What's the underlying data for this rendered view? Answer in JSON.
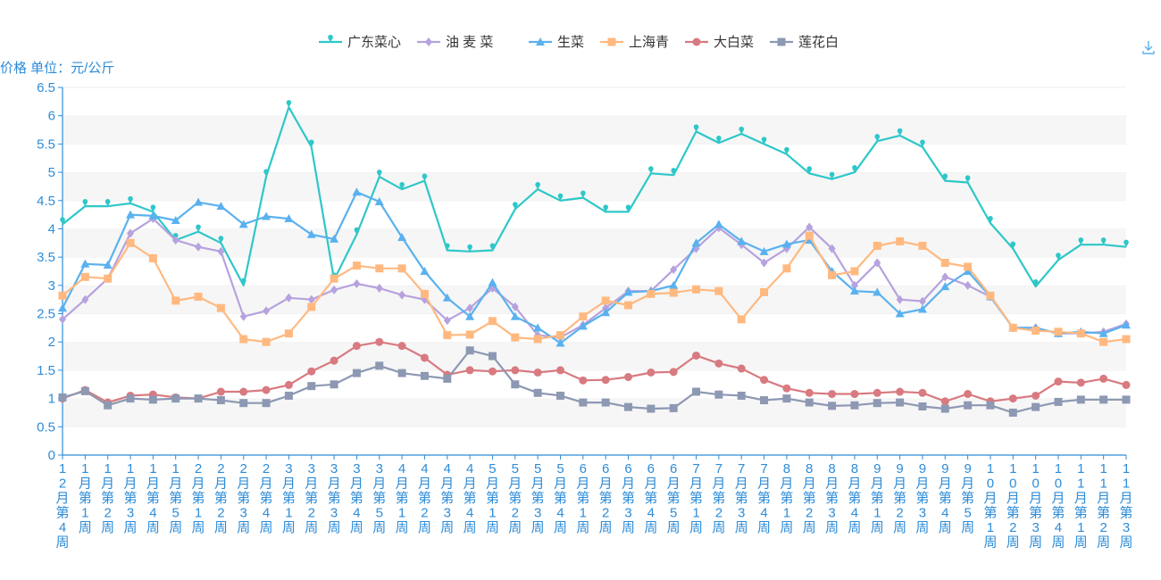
{
  "chart_data": {
    "type": "line",
    "ylabel": "价格 单位：元/公斤",
    "ylim": [
      0,
      6.5
    ],
    "ystep": 0.5,
    "y_ticks": [
      "0",
      "0.5",
      "1",
      "1.5",
      "2",
      "2.5",
      "3",
      "3.5",
      "4",
      "4.5",
      "5",
      "5.5",
      "6",
      "6.5"
    ],
    "grid": "horizontal bands",
    "legend_position": "top-center",
    "categories": [
      "12月第4周",
      "1月第1周",
      "1月第2周",
      "1月第3周",
      "1月第4周",
      "1月第5周",
      "2月第1周",
      "2月第2周",
      "2月第3周",
      "2月第4周",
      "3月第1周",
      "3月第2周",
      "3月第3周",
      "3月第4周",
      "3月第5周",
      "4月第1周",
      "4月第2周",
      "4月第3周",
      "4月第4周",
      "5月第1周",
      "5月第2周",
      "5月第3周",
      "5月第4周",
      "6月第1周",
      "6月第2周",
      "6月第3周",
      "6月第4周",
      "6月第5周",
      "7月第1周",
      "7月第2周",
      "7月第3周",
      "7月第4周",
      "8月第1周",
      "8月第2周",
      "8月第3周",
      "8月第4周",
      "9月第1周",
      "9月第2周",
      "9月第3周",
      "9月第4周",
      "9月第5周",
      "10月第1周",
      "10月第2周",
      "10月第3周",
      "10月第4周",
      "11月第1周",
      "11月第2周",
      "11月第3周"
    ],
    "series": [
      {
        "name": "广东菜心",
        "color": "#2ec7c9",
        "marker": "pin",
        "values": [
          4.08,
          4.4,
          4.4,
          4.45,
          4.3,
          3.8,
          3.95,
          3.75,
          3.0,
          4.93,
          6.15,
          5.45,
          3.1,
          3.9,
          4.92,
          4.7,
          4.85,
          3.62,
          3.6,
          3.62,
          4.35,
          4.7,
          4.5,
          4.55,
          4.3,
          4.3,
          4.98,
          4.95,
          5.72,
          5.52,
          5.68,
          5.5,
          5.32,
          4.98,
          4.88,
          5.0,
          5.55,
          5.65,
          5.45,
          4.85,
          4.82,
          4.1,
          3.65,
          2.98,
          3.45,
          3.72,
          3.72,
          3.68
        ]
      },
      {
        "name": "油 麦 菜",
        "color": "#b6a2de",
        "marker": "diamond",
        "values": [
          2.4,
          2.75,
          3.12,
          3.92,
          4.18,
          3.8,
          3.68,
          3.6,
          2.45,
          2.55,
          2.78,
          2.75,
          2.92,
          3.03,
          2.95,
          2.83,
          2.75,
          2.38,
          2.6,
          2.95,
          2.62,
          2.12,
          2.08,
          2.3,
          2.6,
          2.9,
          2.9,
          3.28,
          3.65,
          4.02,
          3.72,
          3.4,
          3.65,
          4.03,
          3.65,
          3.0,
          3.4,
          2.75,
          2.72,
          3.15,
          3.0,
          2.8,
          2.25,
          2.25,
          2.15,
          2.15,
          2.18,
          2.32
        ]
      },
      {
        "name": "生菜",
        "color": "#5ab1ef",
        "marker": "triangle",
        "values": [
          2.6,
          3.38,
          3.36,
          4.25,
          4.23,
          4.15,
          4.47,
          4.4,
          4.08,
          4.22,
          4.18,
          3.9,
          3.82,
          4.65,
          4.48,
          3.85,
          3.25,
          2.78,
          2.45,
          3.05,
          2.45,
          2.25,
          1.98,
          2.28,
          2.52,
          2.88,
          2.9,
          3.0,
          3.75,
          4.08,
          3.78,
          3.6,
          3.73,
          3.8,
          3.25,
          2.9,
          2.88,
          2.5,
          2.58,
          2.98,
          3.25,
          2.8,
          2.25,
          2.25,
          2.15,
          2.18,
          2.15,
          2.3
        ]
      },
      {
        "name": "上海青",
        "color": "#ffb980",
        "marker": "square",
        "values": [
          2.82,
          3.15,
          3.12,
          3.75,
          3.48,
          2.73,
          2.8,
          2.6,
          2.05,
          2.0,
          2.15,
          2.62,
          3.12,
          3.35,
          3.3,
          3.3,
          2.85,
          2.12,
          2.13,
          2.37,
          2.08,
          2.05,
          2.12,
          2.45,
          2.73,
          2.65,
          2.85,
          2.87,
          2.93,
          2.9,
          2.4,
          2.88,
          3.3,
          3.88,
          3.18,
          3.25,
          3.7,
          3.78,
          3.7,
          3.4,
          3.33,
          2.82,
          2.25,
          2.2,
          2.18,
          2.15,
          2.0,
          2.05
        ]
      },
      {
        "name": "大白菜",
        "color": "#d87a80",
        "marker": "circle",
        "values": [
          1.0,
          1.15,
          0.93,
          1.05,
          1.07,
          1.02,
          1.0,
          1.12,
          1.12,
          1.15,
          1.24,
          1.48,
          1.67,
          1.93,
          2.0,
          1.93,
          1.72,
          1.42,
          1.5,
          1.48,
          1.5,
          1.46,
          1.5,
          1.32,
          1.33,
          1.38,
          1.46,
          1.47,
          1.76,
          1.62,
          1.53,
          1.33,
          1.18,
          1.1,
          1.08,
          1.08,
          1.1,
          1.12,
          1.1,
          0.95,
          1.08,
          0.95,
          1.0,
          1.05,
          1.3,
          1.28,
          1.35,
          1.24
        ]
      },
      {
        "name": "莲花白",
        "color": "#8d98b3",
        "marker": "square",
        "values": [
          1.02,
          1.13,
          0.88,
          1.0,
          0.98,
          1.0,
          1.0,
          0.97,
          0.92,
          0.92,
          1.05,
          1.22,
          1.25,
          1.45,
          1.58,
          1.45,
          1.4,
          1.35,
          1.85,
          1.75,
          1.25,
          1.1,
          1.05,
          0.93,
          0.93,
          0.85,
          0.82,
          0.83,
          1.12,
          1.07,
          1.05,
          0.97,
          1.0,
          0.93,
          0.87,
          0.88,
          0.92,
          0.93,
          0.86,
          0.82,
          0.88,
          0.88,
          0.75,
          0.85,
          0.94,
          0.98,
          0.98,
          0.98
        ]
      }
    ]
  },
  "toolbar": {
    "save_icon": "download-icon"
  }
}
